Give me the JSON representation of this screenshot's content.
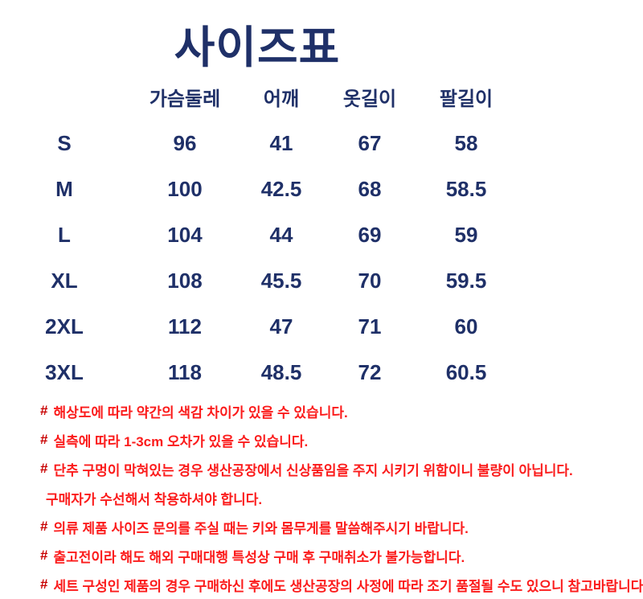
{
  "title": "사이즈표",
  "table": {
    "headers": [
      "가슴둘레",
      "어깨",
      "옷길이",
      "팔길이"
    ],
    "rows": [
      {
        "size": "S",
        "chest": "96",
        "shoulder": "41",
        "length": "67",
        "sleeve": "58"
      },
      {
        "size": "M",
        "chest": "100",
        "shoulder": "42.5",
        "length": "68",
        "sleeve": "58.5"
      },
      {
        "size": "L",
        "chest": "104",
        "shoulder": "44",
        "length": "69",
        "sleeve": "59"
      },
      {
        "size": "XL",
        "chest": "108",
        "shoulder": "45.5",
        "length": "70",
        "sleeve": "59.5"
      },
      {
        "size": "2XL",
        "chest": "112",
        "shoulder": "47",
        "length": "71",
        "sleeve": "60"
      },
      {
        "size": "3XL",
        "chest": "118",
        "shoulder": "48.5",
        "length": "72",
        "sleeve": "60.5"
      }
    ]
  },
  "notes": [
    {
      "prefix": "#",
      "text": "해상도에 따라 약간의 색감 차이가 있을 수 있습니다."
    },
    {
      "prefix": "#",
      "text": "실측에 따라 1-3cm 오차가 있을 수 있습니다."
    },
    {
      "prefix": "#",
      "text": "단추 구멍이 막혀있는 경우 생산공장에서 신상품임을 주지 시키기 위함이니 불량이 아닙니다."
    },
    {
      "prefix": "",
      "text": "구매자가 수선해서 착용하셔야 합니다."
    },
    {
      "prefix": "#",
      "text": "의류 제품 사이즈 문의를 주실 때는 키와 몸무게를 말씀해주시기 바랍니다."
    },
    {
      "prefix": "#",
      "text": "출고전이라 해도 해외 구매대행 특성상 구매 후 구매취소가 불가능합니다."
    },
    {
      "prefix": "#",
      "text": "세트 구성인 제품의 경우 구매하신 후에도 생산공장의 사정에 따라 조기 품절될 수도 있으니 참고바랍니다."
    }
  ],
  "colors": {
    "navy": "#1f3068",
    "red": "#fb1b1b",
    "hash_red": "#c80000"
  }
}
